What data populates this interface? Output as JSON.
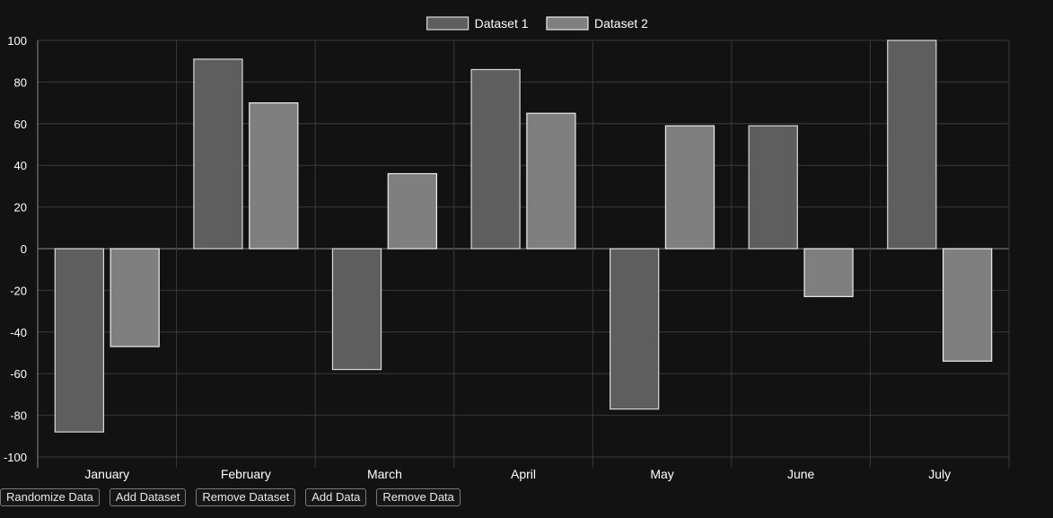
{
  "chart_data": {
    "type": "bar",
    "categories": [
      "January",
      "February",
      "March",
      "April",
      "May",
      "June",
      "July"
    ],
    "series": [
      {
        "name": "Dataset 1",
        "values": [
          -88,
          91,
          -58,
          86,
          -77,
          59,
          100
        ],
        "fill": "#5e5e5e",
        "stroke": "#d9d9d9"
      },
      {
        "name": "Dataset 2",
        "values": [
          -47,
          70,
          36,
          65,
          59,
          -23,
          -54
        ],
        "fill": "#7f7f7f",
        "stroke": "#ededed"
      }
    ],
    "ylim": [
      -100,
      100
    ],
    "yticks": [
      100,
      80,
      60,
      40,
      20,
      0,
      -20,
      -40,
      -60,
      -80,
      -100
    ],
    "grid": true,
    "legend": "top-center"
  },
  "controls": {
    "randomize": "Randomize Data",
    "add_dataset": "Add Dataset",
    "remove_dataset": "Remove Dataset",
    "add_data": "Add Data",
    "remove_data": "Remove Data"
  }
}
